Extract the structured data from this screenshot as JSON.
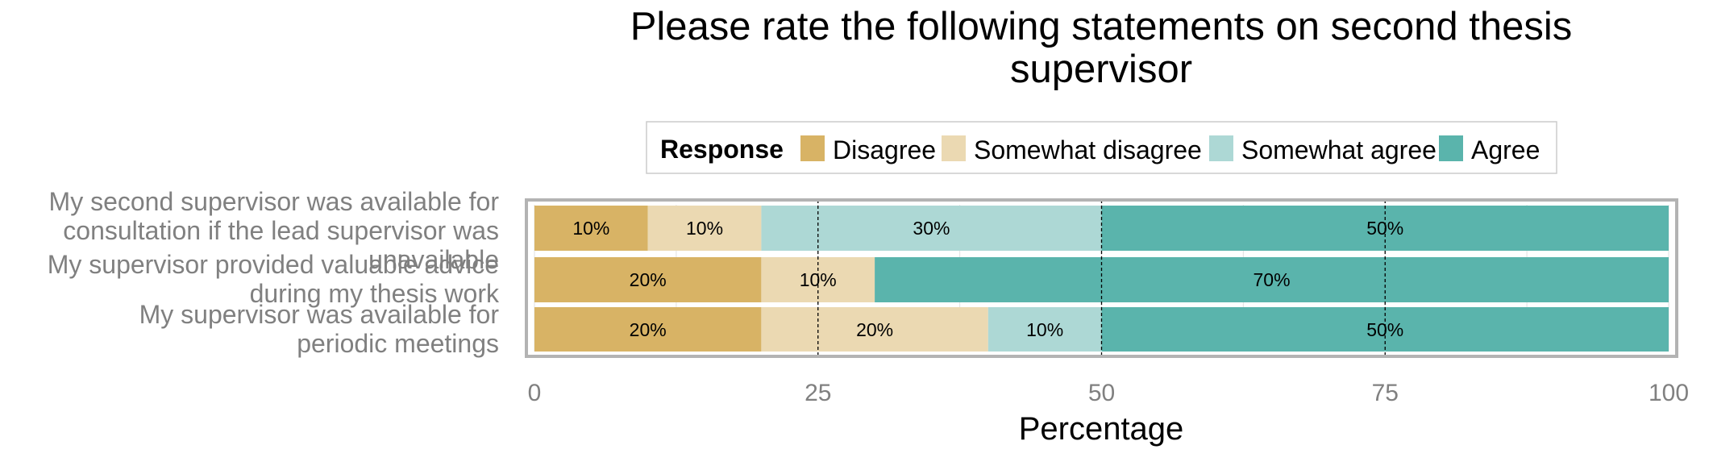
{
  "chart_data": {
    "type": "bar",
    "orientation": "horizontal",
    "stacked": true,
    "title": "Please rate the following statements on second thesis supervisor",
    "xlabel": "Percentage",
    "ylabel": "",
    "xlim": [
      0,
      100
    ],
    "xticks": [
      "0",
      "25",
      "50",
      "75",
      "100"
    ],
    "grid": true,
    "legend_position": "top",
    "legend_title": "Response",
    "categories": [
      "My second supervisor was available for consultation if the lead supervisor was unavailable",
      "My supervisor provided valuable advice during my thesis work",
      "My supervisor was available for periodic meetings"
    ],
    "category_lines": [
      [
        "My second supervisor was available for",
        "consultation if the lead supervisor was",
        "unavailable"
      ],
      [
        "My supervisor provided valuable advice",
        "during my thesis work"
      ],
      [
        "My supervisor was available for",
        "periodic meetings"
      ]
    ],
    "series": [
      {
        "name": "Disagree",
        "color": "#D8B365",
        "values": [
          10,
          20,
          20
        ]
      },
      {
        "name": "Somewhat disagree",
        "color": "#EBD9B2",
        "values": [
          10,
          10,
          20
        ]
      },
      {
        "name": "Somewhat agree",
        "color": "#ADD8D5",
        "values": [
          30,
          0,
          10
        ]
      },
      {
        "name": "Agree",
        "color": "#5AB4AC",
        "values": [
          50,
          70,
          50
        ]
      }
    ],
    "data_labels": [
      [
        "10%",
        "10%",
        "30%",
        "50%"
      ],
      [
        "20%",
        "10%",
        "",
        "70%"
      ],
      [
        "20%",
        "20%",
        "10%",
        "50%"
      ]
    ],
    "reference_lines": [
      25,
      75
    ]
  }
}
